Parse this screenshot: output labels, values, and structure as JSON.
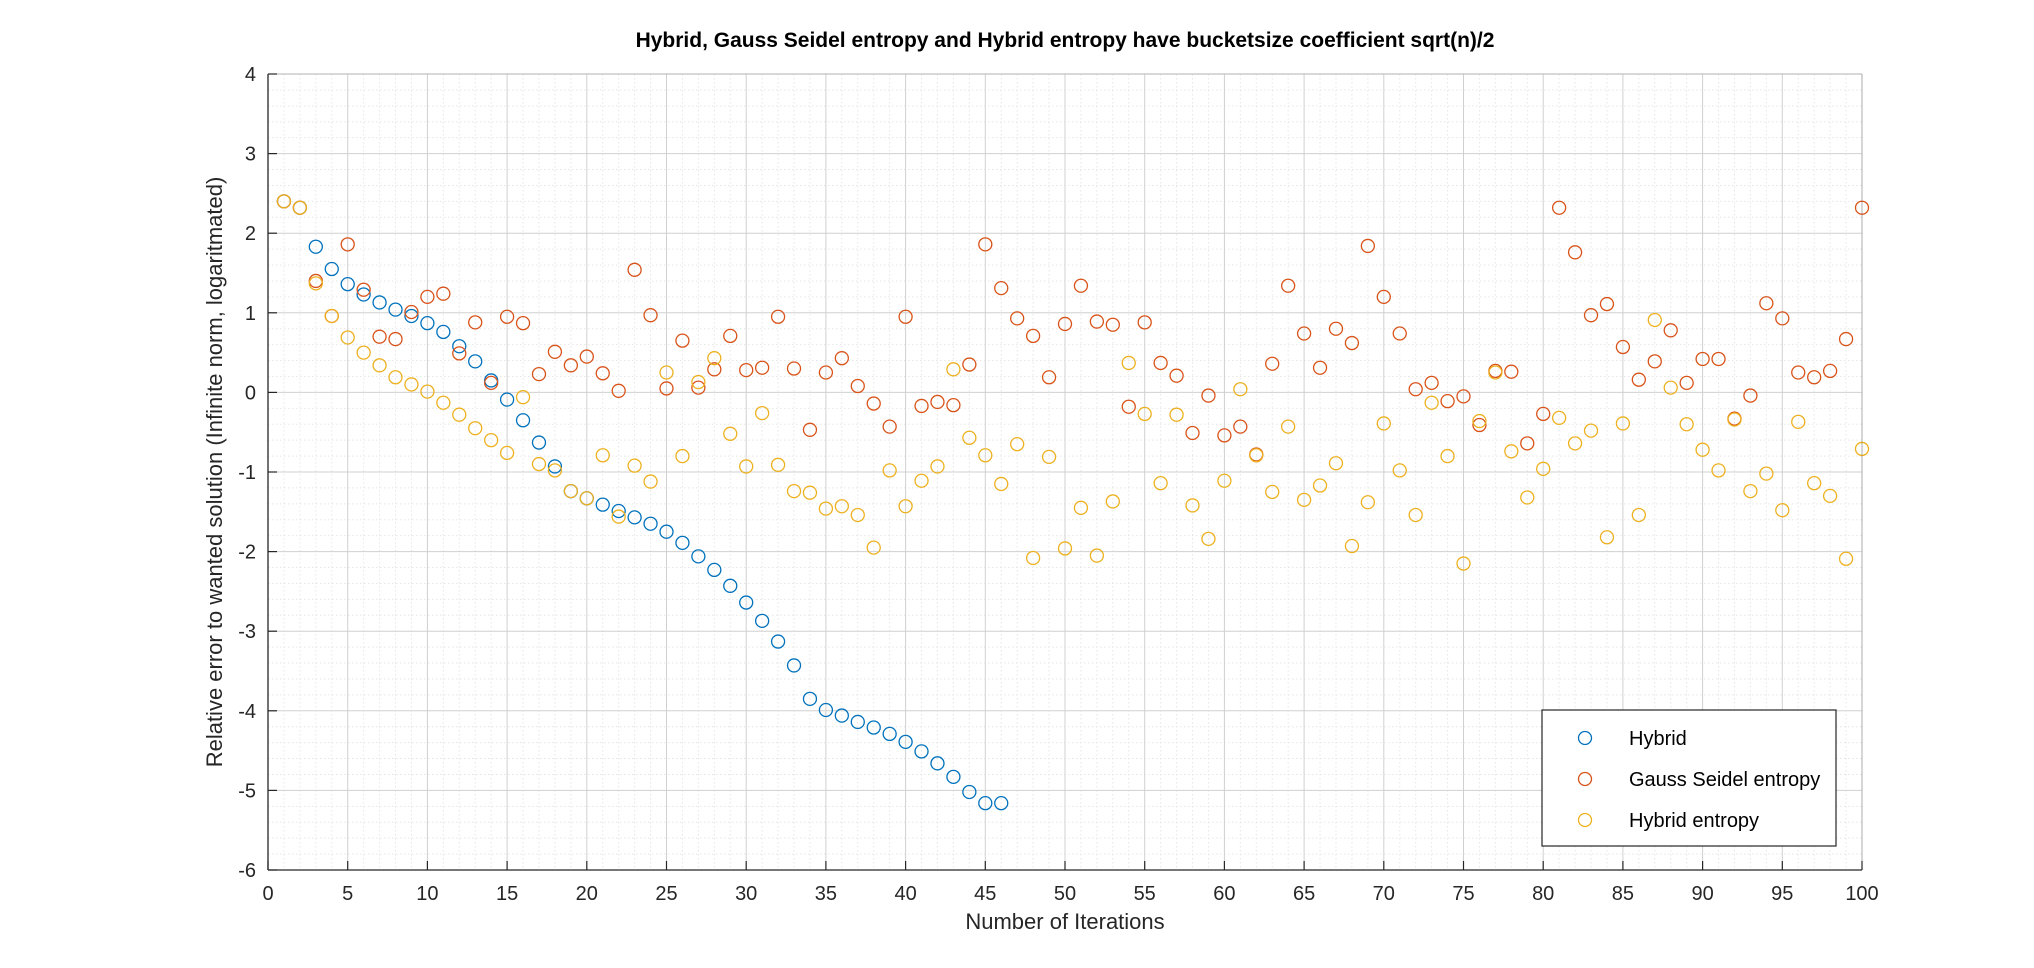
{
  "chart_data": {
    "type": "scatter",
    "title": "Hybrid, Gauss Seidel entropy and Hybrid entropy have bucketsize coefficient sqrt(n)/2",
    "xlabel": "Number of Iterations",
    "ylabel": "Relative error to wanted solution (Infinite norm, logaritmated)",
    "xlim": [
      0,
      100
    ],
    "ylim": [
      -6,
      4
    ],
    "xticks": [
      0,
      5,
      10,
      15,
      20,
      25,
      30,
      35,
      40,
      45,
      50,
      55,
      60,
      65,
      70,
      75,
      80,
      85,
      90,
      95,
      100
    ],
    "yticks": [
      -6,
      -5,
      -4,
      -3,
      -2,
      -1,
      0,
      1,
      2,
      3,
      4
    ],
    "grid": true,
    "minor_grid": true,
    "legend_position": "bottom-right",
    "series": [
      {
        "name": "Hybrid",
        "color": "#0072BD",
        "x": [
          1,
          2,
          3,
          4,
          5,
          6,
          7,
          8,
          9,
          10,
          11,
          12,
          13,
          14,
          15,
          16,
          17,
          18,
          19,
          20,
          21,
          22,
          23,
          24,
          25,
          26,
          27,
          28,
          29,
          30,
          31,
          32,
          33,
          34,
          35,
          36,
          37,
          38,
          39,
          40,
          41,
          42,
          43,
          44,
          45,
          46
        ],
        "y": [
          2.4,
          2.32,
          1.83,
          1.55,
          1.36,
          1.23,
          1.13,
          1.04,
          0.96,
          0.87,
          0.76,
          0.58,
          0.39,
          0.15,
          -0.09,
          -0.35,
          -0.63,
          -0.93,
          -1.24,
          -1.33,
          -1.41,
          -1.49,
          -1.57,
          -1.65,
          -1.75,
          -1.89,
          -2.06,
          -2.23,
          -2.43,
          -2.64,
          -2.87,
          -3.13,
          -3.43,
          -3.85,
          -3.99,
          -4.06,
          -4.14,
          -4.21,
          -4.29,
          -4.39,
          -4.51,
          -4.66,
          -4.83,
          -5.02,
          -5.16,
          -5.16
        ]
      },
      {
        "name": "Gauss Seidel entropy",
        "color": "#D95319",
        "x": [
          1,
          2,
          3,
          4,
          5,
          6,
          7,
          8,
          9,
          10,
          11,
          12,
          13,
          14,
          15,
          16,
          17,
          18,
          19,
          20,
          21,
          22,
          23,
          24,
          25,
          26,
          27,
          28,
          29,
          30,
          31,
          32,
          33,
          34,
          35,
          36,
          37,
          38,
          39,
          40,
          41,
          42,
          43,
          44,
          45,
          46,
          47,
          48,
          49,
          50,
          51,
          52,
          53,
          54,
          55,
          56,
          57,
          58,
          59,
          60,
          61,
          62,
          63,
          64,
          65,
          66,
          67,
          68,
          69,
          70,
          71,
          72,
          73,
          74,
          75,
          76,
          77,
          78,
          79,
          80,
          81,
          82,
          83,
          84,
          85,
          86,
          87,
          88,
          89,
          90,
          91,
          92,
          93,
          94,
          95,
          96,
          97,
          98,
          99,
          100
        ],
        "y": [
          2.4,
          2.32,
          1.4,
          0.96,
          1.86,
          1.29,
          0.7,
          0.67,
          1.01,
          1.2,
          1.24,
          0.49,
          0.88,
          0.12,
          0.95,
          0.87,
          0.23,
          0.51,
          0.34,
          0.45,
          0.24,
          0.02,
          1.54,
          0.97,
          0.05,
          0.65,
          0.06,
          0.29,
          0.71,
          0.28,
          0.31,
          0.95,
          0.3,
          -0.47,
          0.25,
          0.43,
          0.08,
          -0.14,
          -0.43,
          0.95,
          -0.17,
          -0.12,
          -0.16,
          0.35,
          1.86,
          1.31,
          0.93,
          0.71,
          0.19,
          0.86,
          1.34,
          0.89,
          0.85,
          -0.18,
          0.88,
          0.37,
          0.21,
          -0.51,
          -0.04,
          -0.54,
          -0.43,
          -0.78,
          0.36,
          1.34,
          0.74,
          0.31,
          0.8,
          0.62,
          1.84,
          1.2,
          0.74,
          0.04,
          0.12,
          -0.11,
          -0.05,
          -0.41,
          0.27,
          0.26,
          -0.64,
          -0.27,
          2.32,
          1.76,
          0.97,
          1.11,
          0.57,
          0.16,
          0.39,
          0.78,
          0.12,
          0.42,
          0.42,
          -0.33,
          -0.04,
          1.12,
          0.93,
          0.25,
          0.19,
          0.27,
          0.67,
          2.32
        ]
      },
      {
        "name": "Hybrid entropy",
        "color": "#EDB120",
        "x": [
          1,
          2,
          3,
          4,
          5,
          6,
          7,
          8,
          9,
          10,
          11,
          12,
          13,
          14,
          15,
          16,
          17,
          18,
          19,
          20,
          21,
          22,
          23,
          24,
          25,
          26,
          27,
          28,
          29,
          30,
          31,
          32,
          33,
          34,
          35,
          36,
          37,
          38,
          39,
          40,
          41,
          42,
          43,
          44,
          45,
          46,
          47,
          48,
          49,
          50,
          51,
          52,
          53,
          54,
          55,
          56,
          57,
          58,
          59,
          60,
          61,
          62,
          63,
          64,
          65,
          66,
          67,
          68,
          69,
          70,
          71,
          72,
          73,
          74,
          75,
          76,
          77,
          78,
          79,
          80,
          81,
          82,
          83,
          84,
          85,
          86,
          87,
          88,
          89,
          90,
          91,
          92,
          93,
          94,
          95,
          96,
          97,
          98,
          99,
          100
        ],
        "y": [
          2.4,
          2.32,
          1.37,
          0.96,
          0.69,
          0.5,
          0.34,
          0.19,
          0.1,
          0.01,
          -0.13,
          -0.28,
          -0.45,
          -0.6,
          -0.76,
          -0.06,
          -0.9,
          -0.98,
          -1.24,
          -1.33,
          -0.79,
          -1.56,
          -0.92,
          -1.12,
          0.25,
          -0.8,
          0.13,
          0.43,
          -0.52,
          -0.93,
          -0.26,
          -0.91,
          -1.24,
          -1.26,
          -1.46,
          -1.43,
          -1.54,
          -1.95,
          -0.98,
          -1.43,
          -1.11,
          -0.93,
          0.29,
          -0.57,
          -0.79,
          -1.15,
          -0.65,
          -2.08,
          -0.81,
          -1.96,
          -1.45,
          -2.05,
          -1.37,
          0.37,
          -0.27,
          -1.14,
          -0.28,
          -1.42,
          -1.84,
          -1.11,
          0.04,
          -0.79,
          -1.25,
          -0.43,
          -1.35,
          -1.17,
          -0.89,
          -1.93,
          -1.38,
          -0.39,
          -0.98,
          -1.54,
          -0.13,
          -0.8,
          -2.15,
          -0.36,
          0.25,
          -0.74,
          -1.32,
          -0.96,
          -0.32,
          -0.64,
          -0.48,
          -1.82,
          -0.39,
          -1.54,
          0.91,
          0.06,
          -0.4,
          -0.72,
          -0.98,
          -0.34,
          -1.24,
          -1.02,
          -1.48,
          -0.37,
          -1.14,
          -1.3,
          -2.09,
          -0.71
        ]
      }
    ]
  }
}
